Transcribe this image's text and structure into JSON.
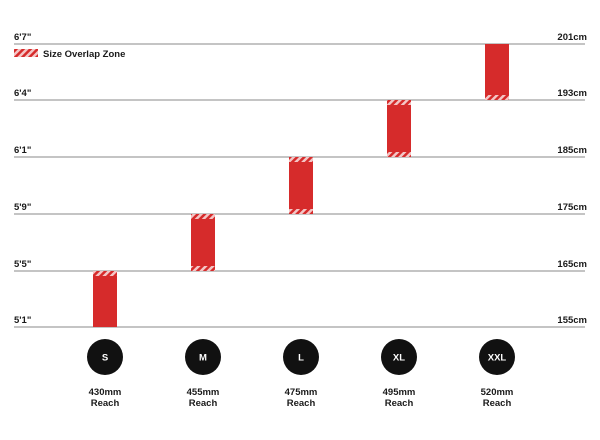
{
  "chart_data": {
    "type": "range-bar",
    "legend": {
      "label": "Size Overlap Zone",
      "placement": "top-left"
    },
    "y_ticks": [
      {
        "ft": "5'1\"",
        "cm": "155cm",
        "value": 155
      },
      {
        "ft": "5'5\"",
        "cm": "165cm",
        "value": 165
      },
      {
        "ft": "5'9\"",
        "cm": "175cm",
        "value": 175
      },
      {
        "ft": "6'1\"",
        "cm": "185cm",
        "value": 185
      },
      {
        "ft": "6'4\"",
        "cm": "193cm",
        "value": 193
      },
      {
        "ft": "6'7\"",
        "cm": "201cm",
        "value": 201
      }
    ],
    "grid": true,
    "sizes": [
      {
        "label": "S",
        "reach_value": "430mm",
        "reach_word": "Reach",
        "min": 155,
        "max": 165,
        "overlap_low": false,
        "overlap_high": true
      },
      {
        "label": "M",
        "reach_value": "455mm",
        "reach_word": "Reach",
        "min": 165,
        "max": 175,
        "overlap_low": true,
        "overlap_high": true
      },
      {
        "label": "L",
        "reach_value": "475mm",
        "reach_word": "Reach",
        "min": 175,
        "max": 185,
        "overlap_low": true,
        "overlap_high": true
      },
      {
        "label": "XL",
        "reach_value": "495mm",
        "reach_word": "Reach",
        "min": 185,
        "max": 193,
        "overlap_low": true,
        "overlap_high": true
      },
      {
        "label": "XXL",
        "reach_value": "520mm",
        "reach_word": "Reach",
        "min": 193,
        "max": 201,
        "overlap_low": true,
        "overlap_high": false
      }
    ],
    "colors": {
      "bar": "#d62b2b",
      "hatch_light": "#f4c6c6",
      "grid": "#8a8a8a",
      "badge": "#111111"
    }
  }
}
